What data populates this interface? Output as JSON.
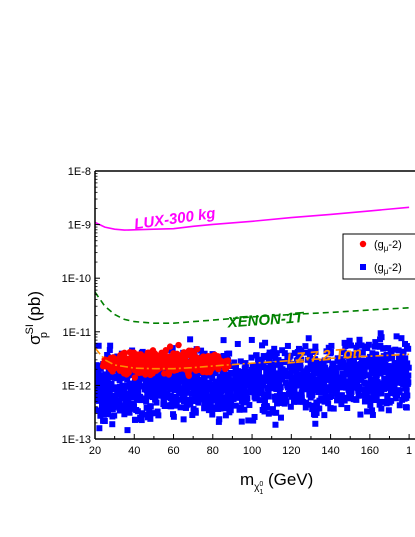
{
  "chart_data": {
    "type": "scatter",
    "xlabel": {
      "main": "m",
      "sub": "χ",
      "subsub": "0",
      "subsubsub": "1",
      "unit": " (GeV)"
    },
    "ylabel": {
      "main": "σ",
      "sup": "SI",
      "sub": "p",
      "unit": " (pb)"
    },
    "xlim": [
      20,
      180
    ],
    "ylim_log10": [
      -13,
      -8
    ],
    "x_ticks": [
      "20",
      "40",
      "60",
      "80",
      "100",
      "120",
      "140",
      "160",
      "1"
    ],
    "y_ticks": [
      "1E-13",
      "1E-12",
      "1E-11",
      "1E-10",
      "1E-9",
      "1E-8"
    ],
    "legend": [
      {
        "marker": "circle",
        "color": "#ff0000",
        "label": "(g",
        "sub": "μ",
        "tail": "-2)"
      },
      {
        "marker": "square",
        "color": "#0000ff",
        "label": "(g",
        "sub": "μ",
        "tail": "-2)"
      }
    ],
    "curves": [
      {
        "name": "LUX-300 kg",
        "color": "#ff00ff",
        "dash": "solid",
        "points": [
          [
            20,
            1.1e-09
          ],
          [
            25,
            9e-10
          ],
          [
            30,
            8.2e-10
          ],
          [
            35,
            7.9e-10
          ],
          [
            40,
            8e-10
          ],
          [
            50,
            8.2e-10
          ],
          [
            60,
            8.4e-10
          ],
          [
            70,
            9.3e-10
          ],
          [
            80,
            1.01e-09
          ],
          [
            100,
            1.15e-09
          ],
          [
            120,
            1.35e-09
          ],
          [
            140,
            1.55e-09
          ],
          [
            160,
            1.8e-09
          ],
          [
            180,
            2.1e-09
          ]
        ]
      },
      {
        "name": "XENON-1T",
        "color": "#008000",
        "dash": "dash",
        "points": [
          [
            20,
            5.5e-11
          ],
          [
            25,
            3e-11
          ],
          [
            30,
            2.1e-11
          ],
          [
            35,
            1.7e-11
          ],
          [
            40,
            1.55e-11
          ],
          [
            50,
            1.45e-11
          ],
          [
            60,
            1.45e-11
          ],
          [
            70,
            1.55e-11
          ],
          [
            80,
            1.65e-11
          ],
          [
            100,
            1.9e-11
          ],
          [
            120,
            2.1e-11
          ],
          [
            140,
            2.3e-11
          ],
          [
            160,
            2.55e-11
          ],
          [
            180,
            2.8e-11
          ]
        ]
      },
      {
        "name": "LZ-7.2 Ton",
        "color": "#ff8c00",
        "dash": "dashdot",
        "points": [
          [
            20,
            5e-12
          ],
          [
            25,
            3e-12
          ],
          [
            30,
            2.4e-12
          ],
          [
            40,
            2.1e-12
          ],
          [
            50,
            2.05e-12
          ],
          [
            60,
            2.05e-12
          ],
          [
            70,
            2.15e-12
          ],
          [
            80,
            2.3e-12
          ],
          [
            100,
            2.6e-12
          ],
          [
            120,
            2.9e-12
          ],
          [
            140,
            3.2e-12
          ],
          [
            160,
            3.5e-12
          ],
          [
            180,
            3.8e-12
          ]
        ]
      }
    ],
    "series": [
      {
        "marker": "square",
        "color": "#0000ff",
        "x_range": [
          20,
          180
        ],
        "y_center": 9e-13,
        "y_spread_log10": 0.3,
        "count": 1600
      },
      {
        "marker": "circle",
        "color": "#ff0000",
        "x_range": [
          24,
          88
        ],
        "y_center": 2.6e-12,
        "y_spread_log10": 0.1,
        "count": 450
      }
    ],
    "annotations": [
      {
        "text": "LUX-300 kg",
        "color": "#ff00ff",
        "x": 61,
        "y": 1.05e-09,
        "rotate": -8
      },
      {
        "text": "XENON-1T",
        "color": "#008000",
        "x": 107,
        "y": 1.35e-11,
        "rotate": -4
      },
      {
        "text": "LZ-7.2 Ton",
        "color": "#ff8c00",
        "x": 137,
        "y": 2.9e-12,
        "rotate": -5
      }
    ]
  }
}
